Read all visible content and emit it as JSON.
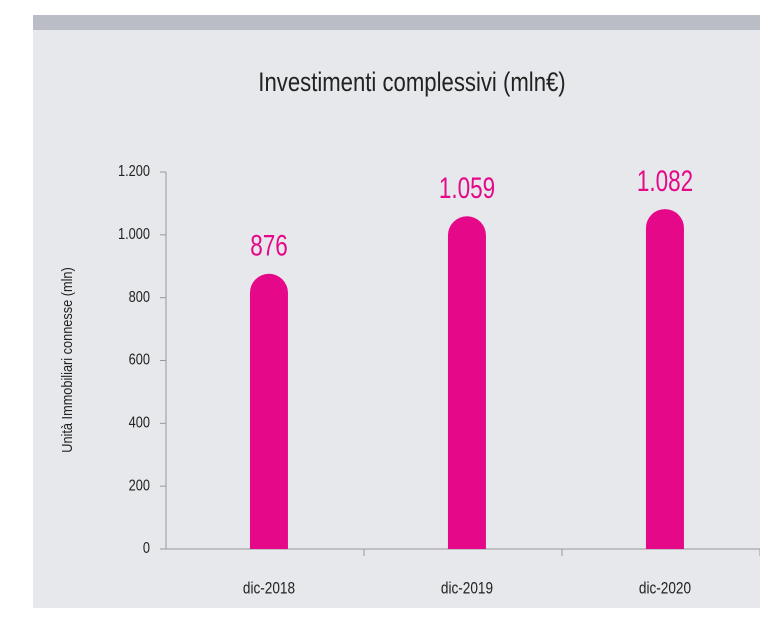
{
  "chart_data": {
    "type": "bar",
    "title": "Investimenti complessivi (mln€)",
    "y_label": "Unità Immobiliari connesse (mln)",
    "categories": [
      "dic-2018",
      "dic-2019",
      "dic-2020"
    ],
    "values": [
      876,
      1059,
      1082
    ],
    "value_labels": [
      "876",
      "1.059",
      "1.082"
    ],
    "color": "#e5098a",
    "ylim": [
      0,
      1200
    ],
    "yticks": [
      0,
      200,
      400,
      600,
      800,
      {
        "value": 1000,
        "label": "1.000"
      },
      {
        "value": 1200,
        "label": "1.200"
      }
    ],
    "grid": false
  }
}
